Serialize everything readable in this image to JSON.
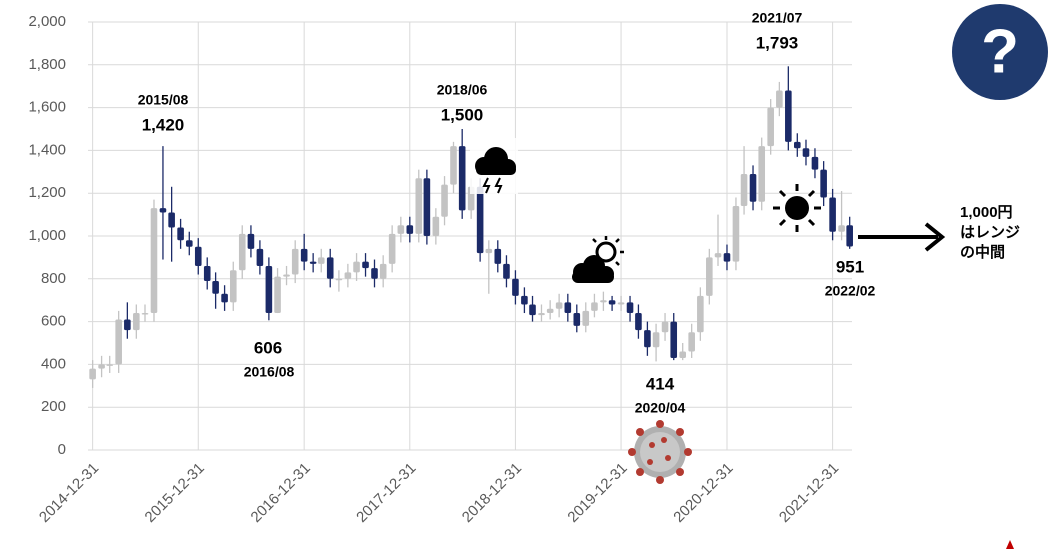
{
  "chart_data": {
    "type": "candlestick",
    "x": [
      "2014-12-31",
      "2015-01-31",
      "2015-02-28",
      "2015-03-31",
      "2015-04-30",
      "2015-05-31",
      "2015-06-30",
      "2015-07-31",
      "2015-08-31",
      "2015-09-30",
      "2015-10-31",
      "2015-11-30",
      "2015-12-31",
      "2016-01-31",
      "2016-02-29",
      "2016-03-31",
      "2016-04-30",
      "2016-05-31",
      "2016-06-30",
      "2016-07-31",
      "2016-08-31",
      "2016-09-30",
      "2016-10-31",
      "2016-11-30",
      "2016-12-31",
      "2017-01-31",
      "2017-02-28",
      "2017-03-31",
      "2017-04-30",
      "2017-05-31",
      "2017-06-30",
      "2017-07-31",
      "2017-08-31",
      "2017-09-30",
      "2017-10-31",
      "2017-11-30",
      "2017-12-31",
      "2018-01-31",
      "2018-02-28",
      "2018-03-31",
      "2018-04-30",
      "2018-05-31",
      "2018-06-30",
      "2018-07-31",
      "2018-08-31",
      "2018-09-30",
      "2018-10-31",
      "2018-11-30",
      "2018-12-31",
      "2019-01-31",
      "2019-02-28",
      "2019-03-31",
      "2019-04-30",
      "2019-05-31",
      "2019-06-30",
      "2019-07-31",
      "2019-08-31",
      "2019-09-30",
      "2019-10-31",
      "2019-11-30",
      "2019-12-31",
      "2020-01-31",
      "2020-02-29",
      "2020-03-31",
      "2020-04-30",
      "2020-05-31",
      "2020-06-30",
      "2020-07-31",
      "2020-08-31",
      "2020-09-30",
      "2020-10-31",
      "2020-11-30",
      "2020-12-31",
      "2021-01-31",
      "2021-02-28",
      "2021-03-31",
      "2021-04-30",
      "2021-05-31",
      "2021-06-30",
      "2021-07-31",
      "2021-08-31",
      "2021-09-30",
      "2021-10-31",
      "2021-11-30",
      "2021-12-31",
      "2022-01-31",
      "2022-02-28"
    ],
    "series": [
      {
        "open": [
          330,
          380,
          400,
          400,
          610,
          560,
          640,
          640,
          1130,
          1110,
          1040,
          980,
          950,
          860,
          790,
          730,
          690,
          840,
          1010,
          940,
          860,
          640,
          810,
          820,
          940,
          880,
          870,
          900,
          800,
          800,
          830,
          880,
          850,
          800,
          870,
          1010,
          1050,
          1010,
          1270,
          1000,
          1090,
          1240,
          1420,
          1120,
          1230,
          920,
          940,
          870,
          800,
          720,
          680,
          630,
          640,
          660,
          690,
          640,
          580,
          650,
          690,
          700,
          680,
          690,
          640,
          560,
          480,
          550,
          600,
          430,
          460,
          550,
          720,
          900,
          920,
          880,
          1140,
          1290,
          1160,
          1420,
          1600,
          1680,
          1440,
          1410,
          1370,
          1310,
          1180,
          1020,
          1050
        ],
        "high": [
          420,
          440,
          440,
          650,
          690,
          680,
          680,
          1170,
          1420,
          1230,
          1080,
          1020,
          990,
          900,
          830,
          770,
          880,
          1050,
          1050,
          980,
          900,
          850,
          860,
          980,
          1010,
          920,
          940,
          940,
          840,
          870,
          920,
          920,
          890,
          910,
          1050,
          1090,
          1090,
          1310,
          1310,
          1130,
          1280,
          1440,
          1500,
          1270,
          1270,
          980,
          980,
          910,
          840,
          760,
          720,
          680,
          700,
          730,
          730,
          680,
          690,
          730,
          740,
          720,
          720,
          720,
          680,
          600,
          590,
          640,
          640,
          500,
          590,
          760,
          940,
          1100,
          960,
          1180,
          1420,
          1330,
          1460,
          1640,
          1720,
          1793,
          1480,
          1450,
          1410,
          1350,
          1220,
          1210,
          1090
        ],
        "low": [
          290,
          340,
          360,
          360,
          520,
          520,
          600,
          600,
          890,
          880,
          940,
          910,
          820,
          750,
          660,
          650,
          650,
          800,
          900,
          820,
          606,
          640,
          770,
          780,
          840,
          830,
          830,
          760,
          740,
          760,
          790,
          810,
          760,
          760,
          830,
          970,
          970,
          970,
          960,
          960,
          1050,
          1200,
          1080,
          1080,
          880,
          730,
          830,
          760,
          680,
          640,
          600,
          600,
          610,
          620,
          600,
          550,
          550,
          620,
          650,
          650,
          650,
          600,
          520,
          440,
          414,
          510,
          420,
          420,
          430,
          510,
          680,
          860,
          840,
          840,
          1100,
          1120,
          1120,
          1380,
          1560,
          1400,
          1370,
          1330,
          1270,
          1140,
          980,
          980,
          940
        ],
        "close": [
          380,
          400,
          400,
          610,
          560,
          640,
          640,
          1130,
          1110,
          1040,
          980,
          950,
          860,
          790,
          730,
          690,
          840,
          1010,
          940,
          860,
          640,
          810,
          820,
          940,
          880,
          870,
          900,
          800,
          800,
          830,
          880,
          850,
          800,
          870,
          1010,
          1050,
          1010,
          1270,
          1000,
          1090,
          1240,
          1420,
          1120,
          1230,
          920,
          940,
          870,
          800,
          720,
          680,
          630,
          640,
          660,
          690,
          640,
          580,
          650,
          690,
          700,
          680,
          690,
          640,
          560,
          480,
          550,
          600,
          430,
          460,
          550,
          720,
          900,
          920,
          880,
          1140,
          1290,
          1160,
          1420,
          1600,
          1680,
          1440,
          1410,
          1370,
          1310,
          1180,
          1020,
          1050,
          951
        ],
        "up_color": "#c3c3c3",
        "down_color": "#1b2a68"
      }
    ],
    "xlim": [
      "2014-12-15",
      "2022-03-08"
    ],
    "xticks": [
      "2014-12-31",
      "2015-12-31",
      "2016-12-31",
      "2017-12-31",
      "2018-12-31",
      "2019-12-31",
      "2020-12-31",
      "2021-12-31"
    ],
    "ylim": [
      0,
      2000
    ],
    "yticks": [
      0,
      200,
      400,
      600,
      800,
      {
        "value": 1000,
        "label": "1,000"
      },
      {
        "value": 1200,
        "label": "1,200"
      },
      {
        "value": 1400,
        "label": "1,400"
      },
      {
        "value": 1600,
        "label": "1,600"
      },
      {
        "value": 1800,
        "label": "1,800"
      },
      {
        "value": 2000,
        "label": "2,000"
      }
    ],
    "grid": true,
    "annotations": [
      "2015/08",
      "1,420",
      "606",
      "2016/08",
      "2018/06",
      "1,500",
      "414",
      "2020/04",
      "2021/07",
      "1,793",
      "951",
      "2022/02"
    ],
    "side_note": [
      "1,000円",
      "はレンジ",
      "の中間"
    ],
    "help_icon": "?"
  }
}
